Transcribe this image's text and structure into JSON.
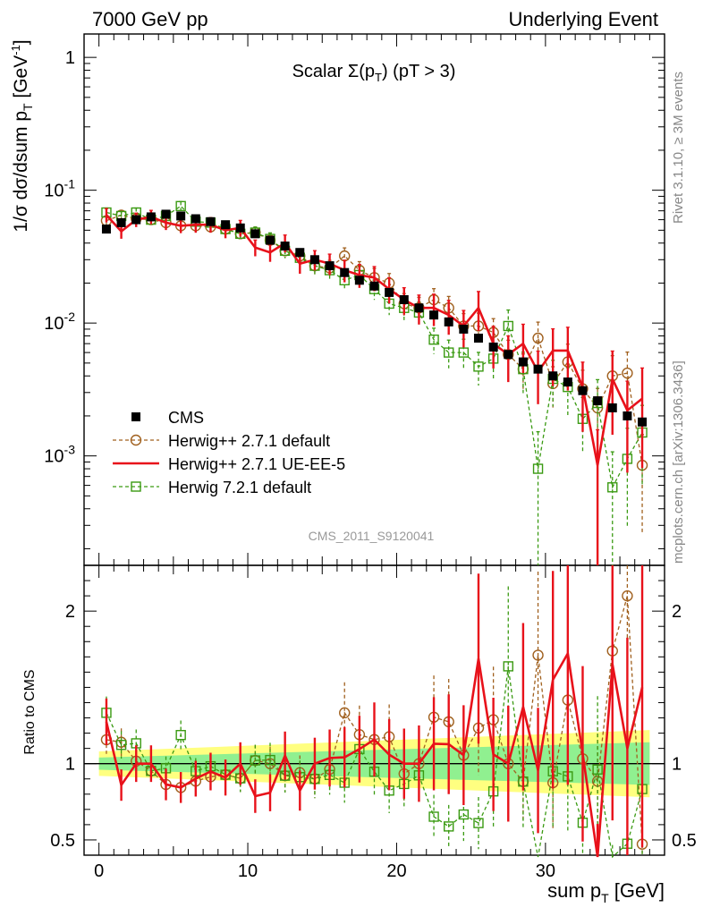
{
  "header": {
    "left": "7000 GeV pp",
    "right": "Underlying Event"
  },
  "side_labels": {
    "rivet": "Rivet 3.1.10, ≥ 3M events",
    "mcplots": "mcplots.cern.ch [arXiv:1306.3436]"
  },
  "chart_data": [
    {
      "type": "scatter",
      "panel": "main",
      "title": "Scalar Σ(p_T) (pT > 3)",
      "ylabel": "1/σ dσ/dsum p_T [GeV^-1]",
      "yscale": "log",
      "ylim": [
        0.00015,
        1.5
      ],
      "xlim": [
        -1,
        38
      ],
      "watermark": "CMS_2011_S9120041",
      "y_tick_labels": [
        "10^-3",
        "10^-2",
        "10^-1",
        "1"
      ],
      "legend_position": "bottom-left",
      "x": [
        0.5,
        1.5,
        2.5,
        3.5,
        4.5,
        5.5,
        6.5,
        7.5,
        8.5,
        9.5,
        10.5,
        11.5,
        12.5,
        13.5,
        14.5,
        15.5,
        16.5,
        17.5,
        18.5,
        19.5,
        20.5,
        21.5,
        22.5,
        23.5,
        24.5,
        25.5,
        26.5,
        27.5,
        28.5,
        29.5,
        30.5,
        31.5,
        32.5,
        33.5,
        34.5,
        35.5,
        36.5
      ],
      "series": [
        {
          "name": "CMS",
          "color": "#000000",
          "marker": "filled-square",
          "values": [
            0.051,
            0.057,
            0.06,
            0.063,
            0.066,
            0.064,
            0.061,
            0.058,
            0.055,
            0.052,
            0.047,
            0.042,
            0.038,
            0.034,
            0.03,
            0.027,
            0.024,
            0.021,
            0.019,
            0.017,
            0.015,
            0.013,
            0.0115,
            0.0102,
            0.009,
            0.0077,
            0.0066,
            0.0058,
            0.0051,
            0.0045,
            0.004,
            0.0036,
            0.0031,
            0.0026,
            0.0023,
            0.002,
            0.0018
          ],
          "rel_err": [
            0.03,
            0.03,
            0.03,
            0.03,
            0.03,
            0.03,
            0.03,
            0.03,
            0.03,
            0.03,
            0.04,
            0.04,
            0.04,
            0.05,
            0.05,
            0.05,
            0.05,
            0.06,
            0.06,
            0.06,
            0.07,
            0.07,
            0.08,
            0.08,
            0.09,
            0.09,
            0.1,
            0.1,
            0.11,
            0.11,
            0.12,
            0.12,
            0.13,
            0.13,
            0.14,
            0.14,
            0.15
          ]
        },
        {
          "name": "Herwig++ 2.7.1 default",
          "color": "#a0601e",
          "marker": "open-circle",
          "dash": "4,3",
          "values": [
            0.059,
            0.065,
            0.061,
            0.06,
            0.057,
            0.054,
            0.054,
            0.053,
            0.051,
            0.047,
            0.048,
            0.042,
            0.035,
            0.032,
            0.027,
            0.026,
            0.032,
            0.025,
            0.022,
            0.02,
            0.014,
            0.013,
            0.015,
            0.013,
            0.0095,
            0.0095,
            0.0085,
            0.0058,
            0.0045,
            0.0077,
            0.0035,
            0.0051,
            0.0032,
            0.0023,
            0.004,
            0.0042,
            0.00085
          ],
          "rel_err": [
            0.08,
            0.08,
            0.08,
            0.08,
            0.08,
            0.08,
            0.09,
            0.09,
            0.09,
            0.1,
            0.1,
            0.11,
            0.12,
            0.12,
            0.14,
            0.14,
            0.15,
            0.16,
            0.17,
            0.18,
            0.19,
            0.2,
            0.21,
            0.22,
            0.24,
            0.25,
            0.27,
            0.28,
            0.3,
            0.32,
            0.34,
            0.36,
            0.38,
            0.4,
            0.42,
            0.44,
            0.7
          ]
        },
        {
          "name": "Herwig++ 2.7.1 UE-EE-5",
          "color": "#e8111a",
          "marker": "none",
          "dash": "",
          "values": [
            0.065,
            0.049,
            0.06,
            0.063,
            0.057,
            0.054,
            0.055,
            0.055,
            0.05,
            0.052,
            0.037,
            0.034,
            0.04,
            0.028,
            0.03,
            0.028,
            0.025,
            0.023,
            0.022,
            0.018,
            0.015,
            0.013,
            0.013,
            0.0115,
            0.0095,
            0.013,
            0.007,
            0.0058,
            0.007,
            0.0043,
            0.0062,
            0.0062,
            0.0033,
            0.00085,
            0.0038,
            0.0022,
            0.0027
          ],
          "rel_err": [
            0.12,
            0.12,
            0.12,
            0.12,
            0.12,
            0.12,
            0.13,
            0.13,
            0.13,
            0.14,
            0.14,
            0.15,
            0.15,
            0.16,
            0.17,
            0.18,
            0.19,
            0.2,
            0.21,
            0.22,
            0.23,
            0.25,
            0.27,
            0.29,
            0.31,
            0.33,
            0.35,
            0.38,
            0.4,
            0.43,
            0.46,
            0.5,
            0.54,
            0.85,
            0.62,
            0.66,
            0.7
          ]
        },
        {
          "name": "Herwig 7.2.1 default",
          "color": "#3a9a12",
          "marker": "open-square",
          "dash": "4,3",
          "values": [
            0.068,
            0.064,
            0.068,
            0.06,
            0.064,
            0.076,
            0.058,
            0.057,
            0.051,
            0.047,
            0.048,
            0.043,
            0.035,
            0.031,
            0.027,
            0.025,
            0.021,
            0.023,
            0.018,
            0.014,
            0.013,
            0.012,
            0.0075,
            0.006,
            0.006,
            0.0047,
            0.0054,
            0.0095,
            0.0045,
            0.0008,
            0.0038,
            0.0033,
            0.0019,
            0.0025,
            0.00058,
            0.00095,
            0.0015
          ],
          "rel_err": [
            0.08,
            0.08,
            0.08,
            0.08,
            0.08,
            0.08,
            0.09,
            0.09,
            0.09,
            0.1,
            0.1,
            0.11,
            0.12,
            0.12,
            0.14,
            0.14,
            0.15,
            0.16,
            0.17,
            0.18,
            0.19,
            0.2,
            0.22,
            0.24,
            0.26,
            0.28,
            0.3,
            0.32,
            0.34,
            0.9,
            0.38,
            0.4,
            0.45,
            0.5,
            0.85,
            0.7,
            0.6
          ]
        }
      ]
    },
    {
      "type": "line",
      "panel": "ratio",
      "ylabel": "Ratio to CMS",
      "xlabel": "sum p_T [GeV]",
      "ylim": [
        0.4,
        2.3
      ],
      "xlim": [
        -1,
        38
      ],
      "x_ticks": [
        0,
        10,
        20,
        30
      ],
      "y_ticks": [
        0.5,
        1,
        2
      ],
      "band": {
        "x_edges": [
          0,
          37
        ],
        "inner_half_width": [
          0.04,
          0.14
        ],
        "outer_half_width": [
          0.08,
          0.22
        ],
        "inner_color": "#90f090",
        "outer_color": "#ffff80"
      }
    }
  ]
}
